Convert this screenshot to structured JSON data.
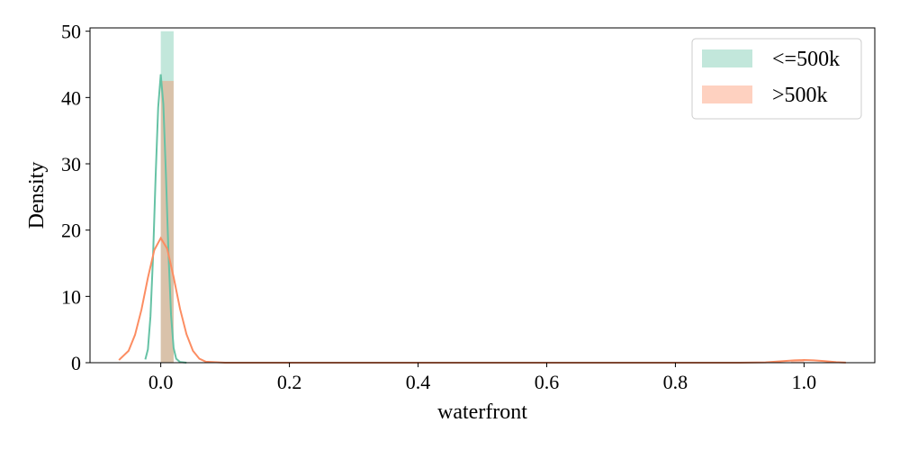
{
  "chart_data": {
    "type": "histogram",
    "xlabel": "waterfront",
    "ylabel": "Density",
    "xlim": [
      -0.11,
      1.11
    ],
    "ylim": [
      0,
      50.5
    ],
    "xticks": [
      0.0,
      0.2,
      0.4,
      0.6,
      0.8,
      1.0
    ],
    "xtick_labels": [
      "0.0",
      "0.2",
      "0.4",
      "0.6",
      "0.8",
      "1.0"
    ],
    "yticks": [
      0,
      10,
      20,
      30,
      40,
      50
    ],
    "ytick_labels": [
      "0",
      "10",
      "20",
      "30",
      "40",
      "50"
    ],
    "legend_position": "top-right",
    "grid": false,
    "series": [
      {
        "name": "<=500k",
        "color": "#66c2a5",
        "hist_alpha": 0.4,
        "bins": [
          {
            "x0": 0.0,
            "x1": 0.02,
            "density": 50.0
          }
        ],
        "kde": [
          [
            -0.024,
            0.5
          ],
          [
            -0.02,
            2.0
          ],
          [
            -0.016,
            7.0
          ],
          [
            -0.012,
            16.0
          ],
          [
            -0.008,
            28.0
          ],
          [
            -0.004,
            38.5
          ],
          [
            0.0,
            43.5
          ],
          [
            0.004,
            39.0
          ],
          [
            0.008,
            28.5
          ],
          [
            0.012,
            16.5
          ],
          [
            0.016,
            7.2
          ],
          [
            0.02,
            2.2
          ],
          [
            0.024,
            0.6
          ],
          [
            0.03,
            0.1
          ],
          [
            0.04,
            0.0
          ]
        ]
      },
      {
        "name": ">500k",
        "color": "#fc8d62",
        "hist_alpha": 0.4,
        "bins": [
          {
            "x0": 0.0,
            "x1": 0.02,
            "density": 42.5
          },
          {
            "x0": 0.98,
            "x1": 1.0,
            "density": 0.3
          }
        ],
        "kde": [
          [
            -0.065,
            0.4
          ],
          [
            -0.05,
            1.8
          ],
          [
            -0.04,
            4.2
          ],
          [
            -0.03,
            8.0
          ],
          [
            -0.02,
            12.8
          ],
          [
            -0.01,
            17.0
          ],
          [
            0.0,
            18.8
          ],
          [
            0.01,
            17.2
          ],
          [
            0.02,
            12.9
          ],
          [
            0.03,
            8.1
          ],
          [
            0.04,
            4.3
          ],
          [
            0.05,
            1.8
          ],
          [
            0.06,
            0.6
          ],
          [
            0.07,
            0.15
          ],
          [
            0.1,
            0.0
          ],
          [
            0.9,
            0.0
          ],
          [
            0.94,
            0.05
          ],
          [
            0.97,
            0.25
          ],
          [
            0.985,
            0.35
          ],
          [
            1.0,
            0.4
          ],
          [
            1.015,
            0.35
          ],
          [
            1.03,
            0.25
          ],
          [
            1.05,
            0.08
          ],
          [
            1.065,
            0.02
          ]
        ]
      }
    ]
  }
}
